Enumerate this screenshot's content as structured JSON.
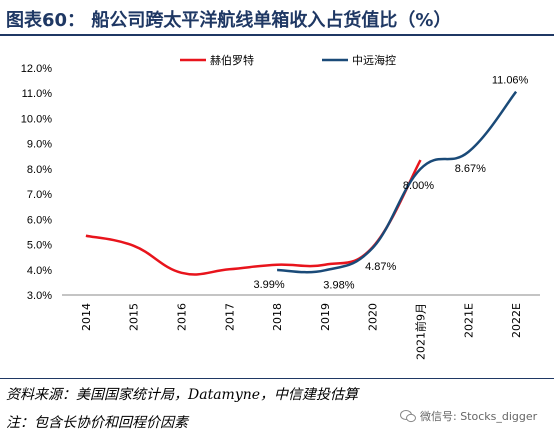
{
  "header": {
    "title": "图表60：   船公司跨太平洋航线单箱收入占货值比（%）"
  },
  "footer": {
    "source": "资料来源：美国国家统计局，Datamyne，中信建投估算",
    "note": "注：包含长协价和回程价因素",
    "watermark": "微信号: Stocks_digger"
  },
  "chart_data": {
    "type": "line",
    "categories": [
      "2014",
      "2015",
      "2016",
      "2017",
      "2018",
      "2019",
      "2020",
      "2021前9月",
      "2021E",
      "2022E"
    ],
    "yticks": [
      "3.0%",
      "4.0%",
      "5.0%",
      "6.0%",
      "7.0%",
      "8.0%",
      "9.0%",
      "10.0%",
      "11.0%",
      "12.0%"
    ],
    "ylim": [
      3.0,
      12.0
    ],
    "series": [
      {
        "name": "赫伯罗特",
        "color": "#e8141c",
        "values": [
          5.35,
          4.95,
          3.88,
          4.02,
          4.2,
          4.2,
          4.9,
          8.35,
          null,
          null
        ]
      },
      {
        "name": "中远海控",
        "color": "#1a4a78",
        "values": [
          null,
          null,
          null,
          null,
          3.99,
          3.98,
          4.87,
          8.0,
          8.67,
          11.06
        ]
      }
    ],
    "data_labels": [
      {
        "series": 1,
        "index": 4,
        "text": "3.99%"
      },
      {
        "series": 1,
        "index": 5,
        "text": "3.98%"
      },
      {
        "series": 1,
        "index": 6,
        "text": "4.87%"
      },
      {
        "series": 1,
        "index": 7,
        "text": "8.00%"
      },
      {
        "series": 1,
        "index": 8,
        "text": "8.67%"
      },
      {
        "series": 1,
        "index": 9,
        "text": "11.06%"
      }
    ],
    "legend": "top-center",
    "grid": false
  }
}
